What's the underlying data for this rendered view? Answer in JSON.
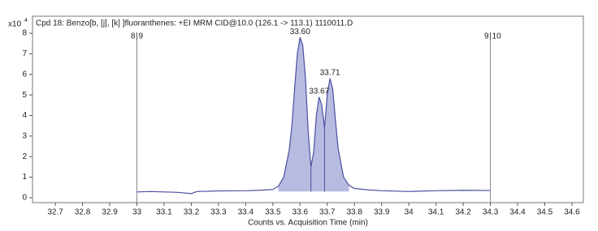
{
  "chart_data": {
    "type": "line",
    "title": "Cpd 18: Benzo[b, [j], [k] ]fluoranthenes: +EI MRM CID@10.0 (126.1 -> 113.1) 1110011.D",
    "y_multiplier": {
      "base": "x10",
      "exponent": "4"
    },
    "x_label": "Counts vs. Acquisition Time (min)",
    "xlim": [
      32.616,
      34.642
    ],
    "ylim": [
      -0.24,
      8.83
    ],
    "xticks": [
      32.7,
      32.8,
      32.9,
      33,
      33.1,
      33.2,
      33.3,
      33.4,
      33.5,
      33.6,
      33.7,
      33.8,
      33.9,
      34,
      34.1,
      34.2,
      34.3,
      34.4,
      34.5,
      34.6
    ],
    "yticks": [
      0,
      1,
      2,
      3,
      4,
      5,
      6,
      7,
      8
    ],
    "series": [
      {
        "color": "#4a4fa0",
        "fill_color": "#b7bbe0",
        "fill_between": [
          33.52,
          33.79
        ],
        "splits": [
          33.64,
          33.69
        ],
        "x": [
          33.0,
          33.05,
          33.1,
          33.15,
          33.2,
          33.22,
          33.3,
          33.4,
          33.45,
          33.5,
          33.52,
          33.54,
          33.56,
          33.57,
          33.58,
          33.59,
          33.6,
          33.61,
          33.62,
          33.63,
          33.64,
          33.65,
          33.66,
          33.67,
          33.68,
          33.69,
          33.7,
          33.71,
          33.72,
          33.73,
          33.74,
          33.76,
          33.78,
          33.8,
          33.85,
          33.9,
          34.0,
          34.1,
          34.2,
          34.3
        ],
        "values": [
          0.28,
          0.3,
          0.28,
          0.26,
          0.2,
          0.3,
          0.33,
          0.34,
          0.36,
          0.4,
          0.55,
          1.0,
          2.3,
          3.5,
          5.3,
          7.0,
          7.8,
          7.4,
          5.8,
          3.2,
          1.5,
          2.2,
          4.0,
          4.9,
          4.5,
          3.4,
          5.0,
          5.8,
          5.3,
          3.8,
          2.4,
          1.0,
          0.6,
          0.45,
          0.38,
          0.34,
          0.3,
          0.34,
          0.36,
          0.35
        ]
      }
    ],
    "annotations": [
      {
        "x": 33.6,
        "y": 7.8,
        "label": "33.60"
      },
      {
        "x": 33.67,
        "y": 4.9,
        "label": "33.67"
      },
      {
        "x": 33.71,
        "y": 5.8,
        "label": "33.71"
      }
    ],
    "markers": [
      {
        "x": 33,
        "labels": [
          "8",
          "9"
        ]
      },
      {
        "x": 34.3,
        "labels": [
          "9",
          "10"
        ]
      }
    ]
  }
}
